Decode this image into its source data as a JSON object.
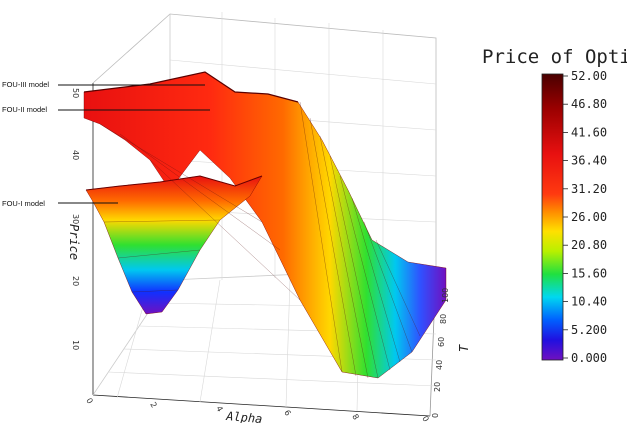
{
  "chart_data": {
    "type": "surface3d",
    "title": "",
    "colorbar": {
      "title": "Price of Option",
      "ticks": [
        "52.00",
        "46.80",
        "41.60",
        "36.40",
        "31.20",
        "26.00",
        "20.80",
        "15.60",
        "10.40",
        "5.200",
        "0.000"
      ],
      "range": [
        0,
        52
      ],
      "colors": [
        "#5a0000",
        "#a00000",
        "#e01010",
        "#ff3010",
        "#ff7a00",
        "#ffd800",
        "#c8f000",
        "#30e030",
        "#00d8e8",
        "#0070ff",
        "#1010e0",
        "#6a10c8"
      ]
    },
    "axes": {
      "x": {
        "label": "Alpha",
        "ticks": [
          "0",
          "2",
          "4",
          "6",
          "8",
          "0"
        ],
        "range": [
          0,
          10
        ]
      },
      "y": {
        "label": "T",
        "ticks": [
          "0",
          "20",
          "40",
          "60",
          "80",
          "100"
        ],
        "range": [
          0,
          100
        ]
      },
      "z": {
        "label": "Price",
        "ticks": [
          "10",
          "20",
          "30",
          "40",
          "50"
        ],
        "range": [
          0,
          55
        ]
      }
    },
    "series": [
      {
        "name": "FOU-III model",
        "alpha": [
          0,
          1,
          2,
          3,
          4,
          5,
          6,
          7,
          8,
          9,
          10
        ],
        "price_at_T100": [
          50,
          48,
          46,
          45,
          49,
          52,
          40,
          28,
          15,
          8,
          5
        ]
      },
      {
        "name": "FOU-II model",
        "alpha": [
          0,
          1,
          2,
          3,
          4,
          5,
          6,
          7,
          8,
          9,
          10
        ],
        "price_at_T100": [
          46,
          44,
          43,
          42,
          45,
          47,
          38,
          26,
          14,
          7,
          4
        ]
      },
      {
        "name": "FOU-I model",
        "alpha": [
          0,
          1,
          2,
          3,
          4,
          5,
          6,
          7,
          8,
          9,
          10
        ],
        "price_at_T100": [
          32,
          31,
          30,
          30,
          33,
          34,
          30,
          22,
          12,
          6,
          3
        ]
      }
    ],
    "grid": true,
    "legend": "right (colorbar)"
  }
}
